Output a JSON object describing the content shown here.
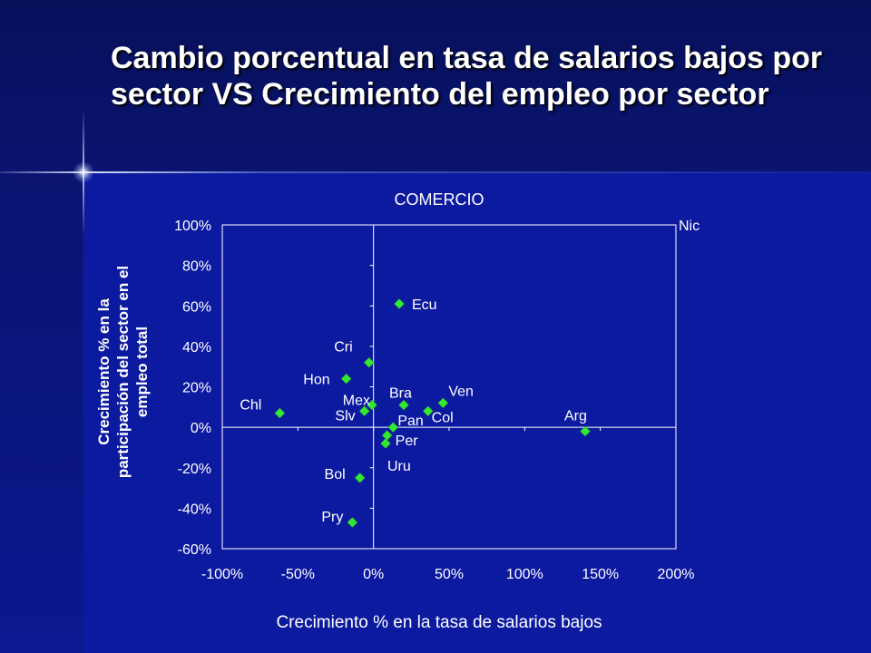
{
  "slide": {
    "title": "Cambio porcentual en tasa de salarios bajos por sector VS Crecimiento del empleo por sector"
  },
  "colors": {
    "background": "#0c1aa0",
    "marker": "#33e833",
    "text": "#ffffff",
    "axis": "#ffffff"
  },
  "chart_data": {
    "type": "scatter",
    "title": "COMERCIO",
    "xlabel": "Crecimiento % en la tasa de salarios bajos",
    "ylabel": "Crecimiento % en la participación del sector en el empleo total",
    "ylabel_lines": [
      "Crecimiento % en la",
      "participación del sector en el",
      "empleo total"
    ],
    "xlim": [
      -100,
      200
    ],
    "ylim": [
      -60,
      100
    ],
    "x_ticks": [
      "-100%",
      "-50%",
      "0%",
      "50%",
      "100%",
      "150%",
      "200%"
    ],
    "y_ticks": [
      "100%",
      "80%",
      "60%",
      "40%",
      "20%",
      "0%",
      "-20%",
      "-40%",
      "-60%"
    ],
    "grid": false,
    "marker": "diamond",
    "points": [
      {
        "label": "Nic",
        "x": 200,
        "y": 100
      },
      {
        "label": "Ecu",
        "x": 17,
        "y": 61
      },
      {
        "label": "Cri",
        "x": -3,
        "y": 32
      },
      {
        "label": "Hon",
        "x": -18,
        "y": 24
      },
      {
        "label": "Chl",
        "x": -62,
        "y": 7
      },
      {
        "label": "Mex",
        "x": -1,
        "y": 11
      },
      {
        "label": "Slv",
        "x": -6,
        "y": 8
      },
      {
        "label": "Bra",
        "x": 20,
        "y": 11
      },
      {
        "label": "Ven",
        "x": 46,
        "y": 12
      },
      {
        "label": "Col",
        "x": 36,
        "y": 8
      },
      {
        "label": "Pan",
        "x": 13,
        "y": 0
      },
      {
        "label": "Per",
        "x": 9,
        "y": -4
      },
      {
        "label": "Uru",
        "x": 8,
        "y": -8
      },
      {
        "label": "Arg",
        "x": 140,
        "y": -2
      },
      {
        "label": "Bol",
        "x": -9,
        "y": -25
      },
      {
        "label": "Pry",
        "x": -14,
        "y": -47
      }
    ]
  }
}
